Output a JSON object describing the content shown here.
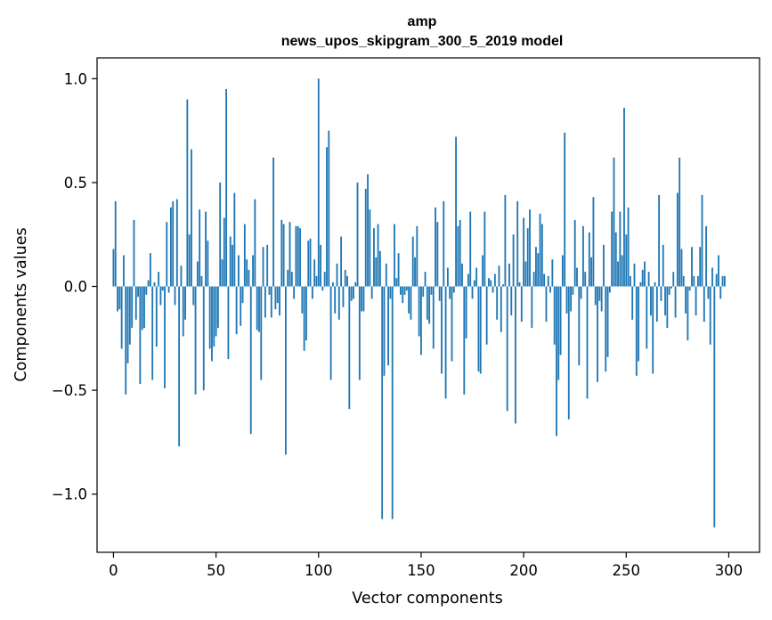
{
  "chart_data": {
    "type": "bar",
    "title": "amp",
    "subtitle": "news_upos_skipgram_300_5_2019 model",
    "xlabel": "Vector components",
    "ylabel": "Components values",
    "xlim": [
      -8,
      315
    ],
    "ylim": [
      -1.28,
      1.1
    ],
    "x_ticks": [
      0,
      50,
      100,
      150,
      200,
      250,
      300
    ],
    "x_tick_labels": [
      "0",
      "50",
      "100",
      "150",
      "200",
      "250",
      "300"
    ],
    "y_ticks": [
      -1.0,
      -0.5,
      0.0,
      0.5,
      1.0
    ],
    "y_tick_labels": [
      "−1.0",
      "−0.5",
      "0.0",
      "0.5",
      "1.0"
    ],
    "bar_color": "#1f77b4",
    "grid": false,
    "values": [
      0.18,
      0.41,
      -0.12,
      -0.11,
      -0.3,
      0.15,
      -0.52,
      -0.37,
      -0.28,
      -0.2,
      0.32,
      -0.16,
      -0.05,
      -0.47,
      -0.21,
      -0.2,
      -0.04,
      0.03,
      0.16,
      -0.45,
      0.02,
      -0.29,
      0.07,
      -0.09,
      -0.02,
      -0.49,
      0.31,
      -0.03,
      0.38,
      0.41,
      -0.09,
      0.42,
      -0.77,
      0.1,
      -0.24,
      -0.16,
      0.9,
      0.25,
      0.66,
      -0.09,
      -0.52,
      0.12,
      0.37,
      0.05,
      -0.5,
      0.36,
      0.22,
      -0.3,
      -0.36,
      -0.29,
      -0.24,
      -0.2,
      0.5,
      0.13,
      0.33,
      0.95,
      -0.35,
      0.24,
      0.2,
      0.45,
      -0.23,
      0.15,
      -0.19,
      -0.08,
      0.3,
      0.13,
      0.08,
      -0.71,
      0.15,
      0.42,
      -0.21,
      -0.22,
      -0.45,
      0.19,
      -0.15,
      0.2,
      -0.04,
      -0.15,
      0.62,
      -0.11,
      -0.08,
      -0.14,
      0.32,
      0.3,
      -0.81,
      0.08,
      0.31,
      0.07,
      -0.06,
      0.29,
      0.29,
      0.28,
      -0.13,
      -0.31,
      -0.26,
      0.22,
      0.23,
      -0.06,
      0.13,
      0.05,
      1.0,
      0.2,
      -0.02,
      0.07,
      0.67,
      0.75,
      -0.45,
      0.02,
      -0.13,
      0.11,
      -0.16,
      0.24,
      -0.1,
      0.08,
      0.05,
      -0.59,
      -0.07,
      -0.06,
      0.02,
      0.5,
      -0.45,
      -0.12,
      -0.12,
      0.47,
      0.54,
      0.37,
      -0.06,
      0.28,
      0.14,
      0.3,
      0.17,
      -1.12,
      -0.43,
      0.11,
      -0.38,
      -0.06,
      -1.12,
      0.3,
      0.04,
      0.16,
      -0.04,
      -0.08,
      -0.04,
      -0.02,
      -0.13,
      -0.16,
      0.24,
      0.14,
      0.29,
      -0.24,
      -0.33,
      -0.05,
      0.07,
      -0.16,
      -0.18,
      -0.04,
      -0.3,
      0.38,
      0.31,
      -0.07,
      -0.42,
      0.41,
      -0.54,
      0.09,
      -0.06,
      -0.36,
      -0.03,
      0.72,
      0.29,
      0.32,
      0.11,
      -0.52,
      -0.25,
      0.06,
      0.36,
      -0.06,
      0.03,
      0.09,
      -0.41,
      -0.42,
      0.15,
      0.36,
      -0.28,
      0.04,
      0.03,
      -0.03,
      0.06,
      -0.16,
      0.1,
      -0.22,
      0.01,
      0.44,
      -0.6,
      0.11,
      -0.14,
      0.25,
      -0.66,
      0.41,
      0.02,
      -0.17,
      0.33,
      0.12,
      0.28,
      0.37,
      -0.2,
      0.07,
      0.19,
      0.16,
      0.35,
      0.3,
      0.06,
      -0.17,
      0.05,
      -0.03,
      0.13,
      -0.28,
      -0.72,
      -0.45,
      -0.33,
      0.15,
      0.74,
      -0.13,
      -0.64,
      -0.12,
      -0.04,
      0.32,
      0.09,
      -0.38,
      -0.06,
      0.29,
      0.07,
      -0.54,
      0.26,
      0.14,
      0.43,
      -0.09,
      -0.46,
      -0.07,
      -0.12,
      0.2,
      -0.41,
      -0.34,
      -0.03,
      0.36,
      0.62,
      0.26,
      0.12,
      0.36,
      0.15,
      0.86,
      0.25,
      0.38,
      0.05,
      -0.16,
      0.11,
      -0.43,
      -0.36,
      0.02,
      0.08,
      0.12,
      -0.3,
      0.07,
      -0.14,
      -0.42,
      0.02,
      -0.17,
      0.44,
      -0.07,
      0.2,
      -0.14,
      -0.2,
      -0.04,
      -0.01,
      0.07,
      -0.15,
      0.45,
      0.62,
      0.18,
      0.05,
      -0.13,
      -0.26,
      -0.02,
      0.19,
      0.05,
      -0.14,
      0.05,
      0.19,
      0.44,
      -0.17,
      0.29,
      -0.06,
      -0.28,
      0.09,
      -1.16,
      0.06,
      0.15,
      -0.06,
      0.05,
      0.05
    ]
  }
}
